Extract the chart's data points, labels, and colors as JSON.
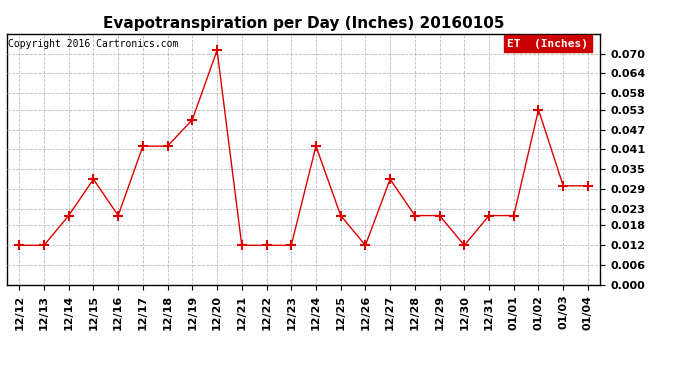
{
  "title": "Evapotranspiration per Day (Inches) 20160105",
  "copyright_text": "Copyright 2016 Cartronics.com",
  "legend_label": "ET  (Inches)",
  "legend_bg": "#cc0000",
  "legend_text_color": "#ffffff",
  "x_labels": [
    "12/12",
    "12/13",
    "12/14",
    "12/15",
    "12/16",
    "12/17",
    "12/18",
    "12/19",
    "12/20",
    "12/21",
    "12/22",
    "12/23",
    "12/24",
    "12/25",
    "12/26",
    "12/27",
    "12/28",
    "12/29",
    "12/30",
    "12/31",
    "01/01",
    "01/02",
    "01/03",
    "01/04"
  ],
  "y_values": [
    0.012,
    0.012,
    0.021,
    0.032,
    0.021,
    0.042,
    0.042,
    0.05,
    0.071,
    0.012,
    0.012,
    0.012,
    0.042,
    0.021,
    0.012,
    0.032,
    0.021,
    0.021,
    0.012,
    0.021,
    0.021,
    0.053,
    0.03,
    0.03
  ],
  "line_color": "#dd0000",
  "marker": "+",
  "marker_size": 7,
  "marker_linewidth": 1.5,
  "ylim": [
    0.0,
    0.076
  ],
  "yticks": [
    0.0,
    0.006,
    0.012,
    0.018,
    0.023,
    0.029,
    0.035,
    0.041,
    0.047,
    0.053,
    0.058,
    0.064,
    0.07
  ],
  "background_color": "#ffffff",
  "grid_color": "#bbbbbb",
  "title_fontsize": 11,
  "copyright_fontsize": 7,
  "tick_fontsize": 8,
  "fig_width": 6.9,
  "fig_height": 3.75,
  "dpi": 100
}
